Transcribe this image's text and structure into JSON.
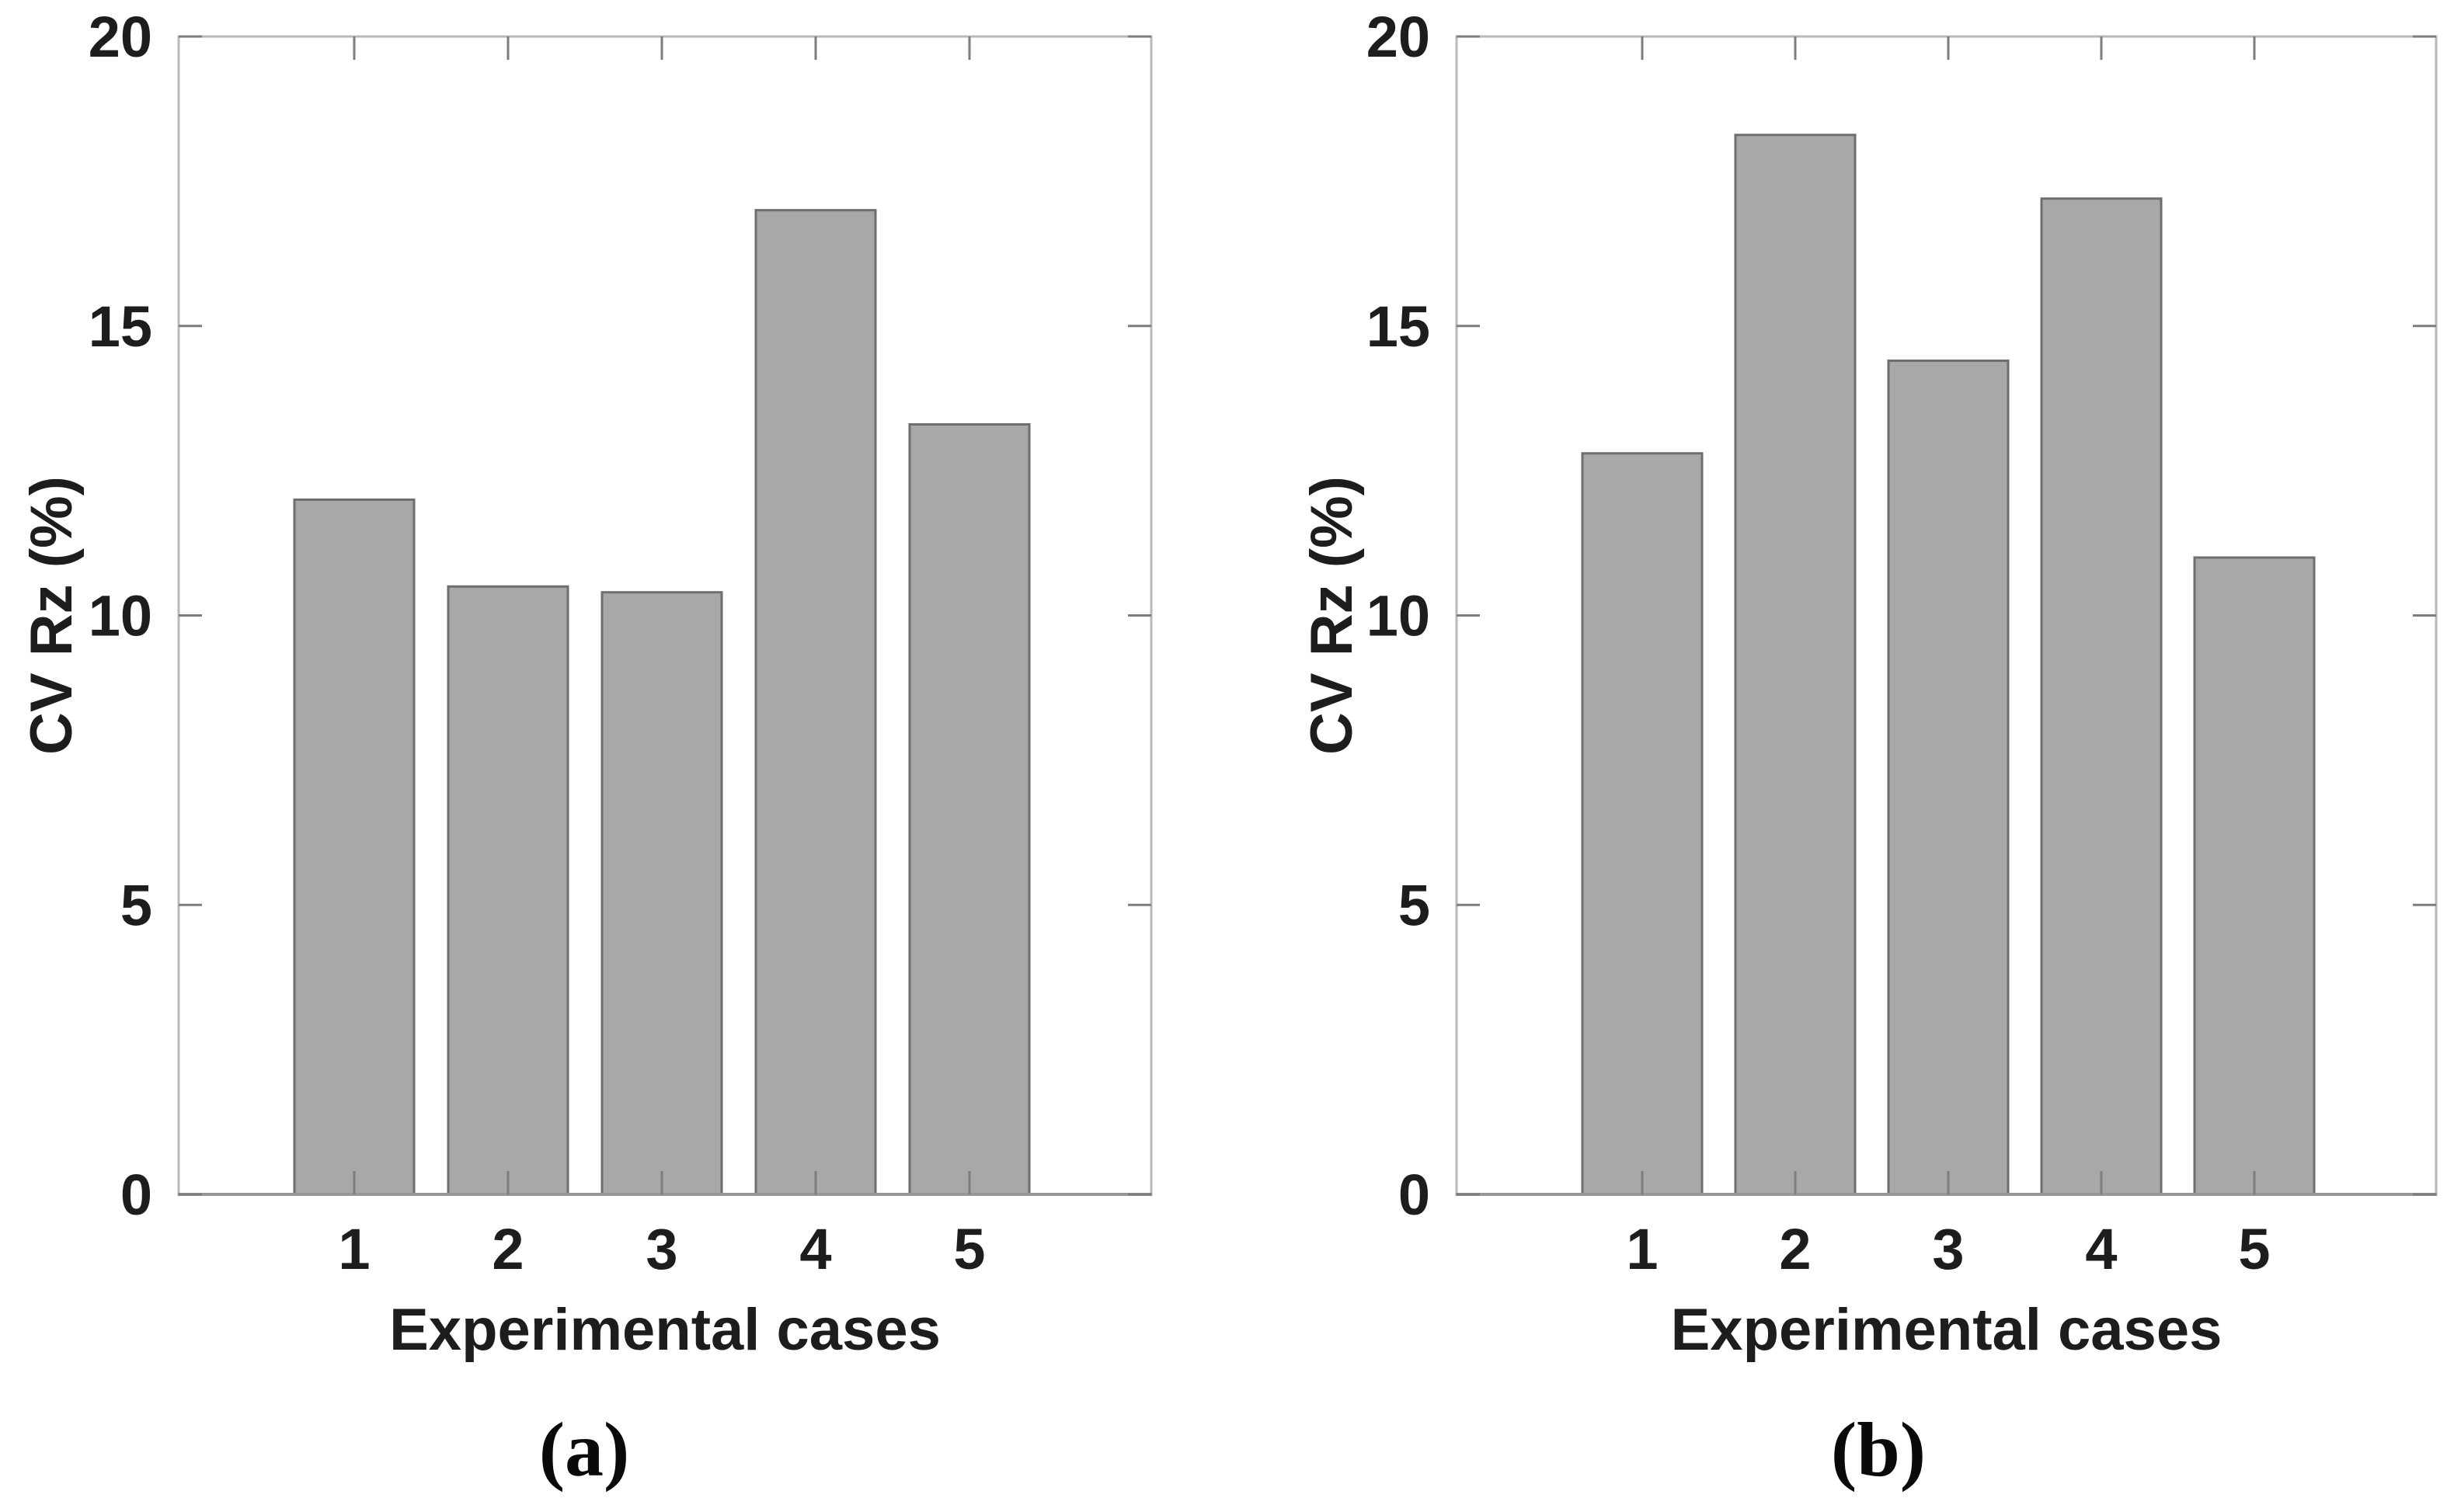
{
  "figure": {
    "background": "#ffffff",
    "description": "Two side-by-side gray bar charts of CV Rz (%) versus experimental cases"
  },
  "colors": {
    "background": "#ffffff",
    "bar_fill": "#a8a8a8",
    "bar_edge": "#6e6e6e",
    "axis_box": "#b9b9b9",
    "axis_bottom": "#979797",
    "tick": "#7d7d7d",
    "text": "#1d1d1d"
  },
  "chart_data": [
    {
      "type": "bar",
      "panel_label": "(a)",
      "title": "",
      "categories": [
        "1",
        "2",
        "3",
        "4",
        "5"
      ],
      "values": [
        12.0,
        10.5,
        10.4,
        17.0,
        13.3
      ],
      "xlabel": "Experimental cases",
      "ylabel": "CV Rz (%)",
      "ylim": [
        0,
        20
      ],
      "yticks": [
        0,
        5,
        10,
        15,
        20
      ],
      "grid": false,
      "legend": null,
      "bar_fill": "#a8a8a8",
      "bar_edge": "#6e6e6e"
    },
    {
      "type": "bar",
      "panel_label": "(b)",
      "title": "",
      "categories": [
        "1",
        "2",
        "3",
        "4",
        "5"
      ],
      "values": [
        12.8,
        18.3,
        14.4,
        17.2,
        11.0
      ],
      "xlabel": "Experimental cases",
      "ylabel": "CV Rz (%)",
      "ylim": [
        0,
        20
      ],
      "yticks": [
        0,
        5,
        10,
        15,
        20
      ],
      "grid": false,
      "legend": null,
      "bar_fill": "#a8a8a8",
      "bar_edge": "#6e6e6e"
    }
  ]
}
